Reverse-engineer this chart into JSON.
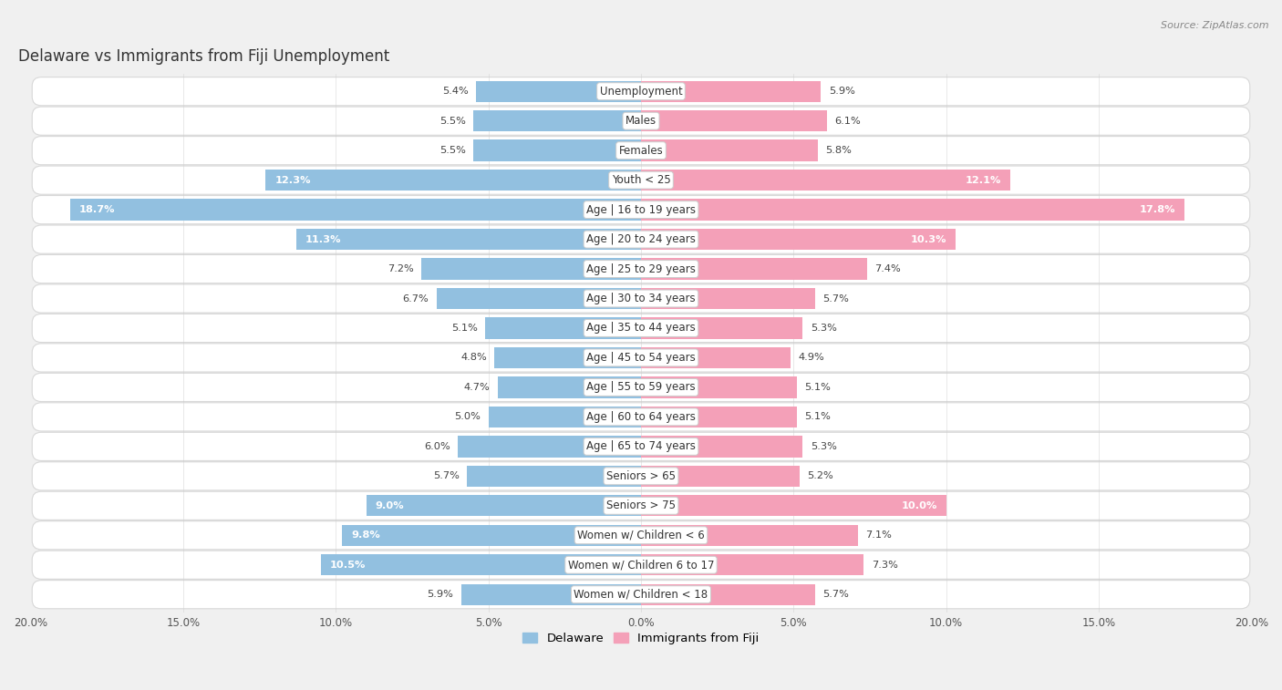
{
  "title": "Delaware vs Immigrants from Fiji Unemployment",
  "source": "Source: ZipAtlas.com",
  "categories": [
    "Unemployment",
    "Males",
    "Females",
    "Youth < 25",
    "Age | 16 to 19 years",
    "Age | 20 to 24 years",
    "Age | 25 to 29 years",
    "Age | 30 to 34 years",
    "Age | 35 to 44 years",
    "Age | 45 to 54 years",
    "Age | 55 to 59 years",
    "Age | 60 to 64 years",
    "Age | 65 to 74 years",
    "Seniors > 65",
    "Seniors > 75",
    "Women w/ Children < 6",
    "Women w/ Children 6 to 17",
    "Women w/ Children < 18"
  ],
  "delaware": [
    5.4,
    5.5,
    5.5,
    12.3,
    18.7,
    11.3,
    7.2,
    6.7,
    5.1,
    4.8,
    4.7,
    5.0,
    6.0,
    5.7,
    9.0,
    9.8,
    10.5,
    5.9
  ],
  "fiji": [
    5.9,
    6.1,
    5.8,
    12.1,
    17.8,
    10.3,
    7.4,
    5.7,
    5.3,
    4.9,
    5.1,
    5.1,
    5.3,
    5.2,
    10.0,
    7.1,
    7.3,
    5.7
  ],
  "delaware_color": "#92c0e0",
  "fiji_color": "#f4a0b8",
  "row_bg_color": "#ffffff",
  "outer_bg_color": "#f0f0f0",
  "row_border_color": "#d8d8d8",
  "axis_max": 20.0,
  "bar_height": 0.72,
  "title_fontsize": 12,
  "label_fontsize": 8.5,
  "value_fontsize": 8.2,
  "legend_label_delaware": "Delaware",
  "legend_label_fiji": "Immigrants from Fiji"
}
